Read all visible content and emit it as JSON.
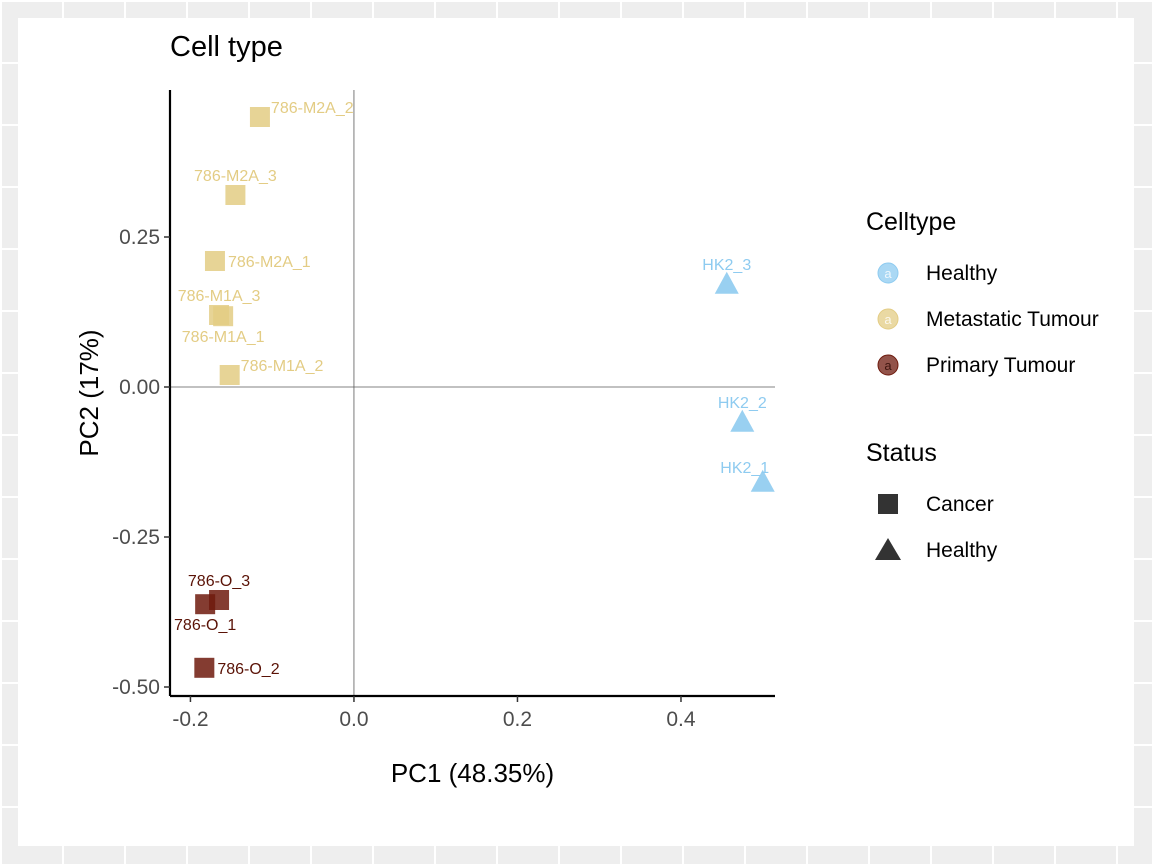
{
  "chart_data": {
    "type": "scatter",
    "title": "Cell type",
    "xlabel": "PC1 (48.35%)",
    "ylabel": "PC2 (17%)",
    "xlim": [
      -0.225,
      0.515
    ],
    "ylim": [
      -0.515,
      0.495
    ],
    "x_ticks": [
      -0.2,
      0.0,
      0.2,
      0.4
    ],
    "x_tick_labels": [
      "-0.2",
      "0.0",
      "0.2",
      "0.4"
    ],
    "y_ticks": [
      -0.5,
      -0.25,
      0.0,
      0.25
    ],
    "y_tick_labels": [
      "-0.50",
      "-0.25",
      "0.00",
      "0.25"
    ],
    "reference_lines": {
      "x": 0,
      "y": 0
    },
    "grid": false,
    "legend_position": "right",
    "legends": [
      {
        "title": "Celltype",
        "kind": "color",
        "entries": [
          {
            "label": "Healthy",
            "color": "#8ecbf0"
          },
          {
            "label": "Metastatic Tumour",
            "color": "#e3cc84"
          },
          {
            "label": "Primary Tumour",
            "color": "#6e1a0d"
          }
        ]
      },
      {
        "title": "Status",
        "kind": "shape",
        "entries": [
          {
            "label": "Cancer",
            "shape": "square"
          },
          {
            "label": "Healthy",
            "shape": "triangle"
          }
        ]
      }
    ],
    "points": [
      {
        "label": "786-M2A_2",
        "x": -0.115,
        "y": 0.45,
        "celltype": "Metastatic Tumour",
        "status": "Cancer",
        "label_pos": "above-right"
      },
      {
        "label": "786-M2A_3",
        "x": -0.145,
        "y": 0.32,
        "celltype": "Metastatic Tumour",
        "status": "Cancer",
        "label_pos": "above"
      },
      {
        "label": "786-M2A_1",
        "x": -0.17,
        "y": 0.21,
        "celltype": "Metastatic Tumour",
        "status": "Cancer",
        "label_pos": "right"
      },
      {
        "label": "786-M1A_3",
        "x": -0.165,
        "y": 0.12,
        "celltype": "Metastatic Tumour",
        "status": "Cancer",
        "label_pos": "above"
      },
      {
        "label": "786-M1A_1",
        "x": -0.16,
        "y": 0.118,
        "celltype": "Metastatic Tumour",
        "status": "Cancer",
        "label_pos": "below"
      },
      {
        "label": "786-M1A_2",
        "x": -0.152,
        "y": 0.02,
        "celltype": "Metastatic Tumour",
        "status": "Cancer",
        "label_pos": "above-right"
      },
      {
        "label": "HK2_3",
        "x": 0.456,
        "y": 0.172,
        "celltype": "Healthy",
        "status": "Healthy",
        "label_pos": "above"
      },
      {
        "label": "HK2_2",
        "x": 0.475,
        "y": -0.058,
        "celltype": "Healthy",
        "status": "Healthy",
        "label_pos": "above"
      },
      {
        "label": "HK2_1",
        "x": 0.5,
        "y": -0.158,
        "celltype": "Healthy",
        "status": "Healthy",
        "label_pos": "above-left"
      },
      {
        "label": "786-O_3",
        "x": -0.165,
        "y": -0.355,
        "celltype": "Primary Tumour",
        "status": "Cancer",
        "label_pos": "above"
      },
      {
        "label": "786-O_1",
        "x": -0.182,
        "y": -0.362,
        "celltype": "Primary Tumour",
        "status": "Cancer",
        "label_pos": "below"
      },
      {
        "label": "786-O_2",
        "x": -0.183,
        "y": -0.468,
        "celltype": "Primary Tumour",
        "status": "Cancer",
        "label_pos": "right"
      }
    ]
  }
}
